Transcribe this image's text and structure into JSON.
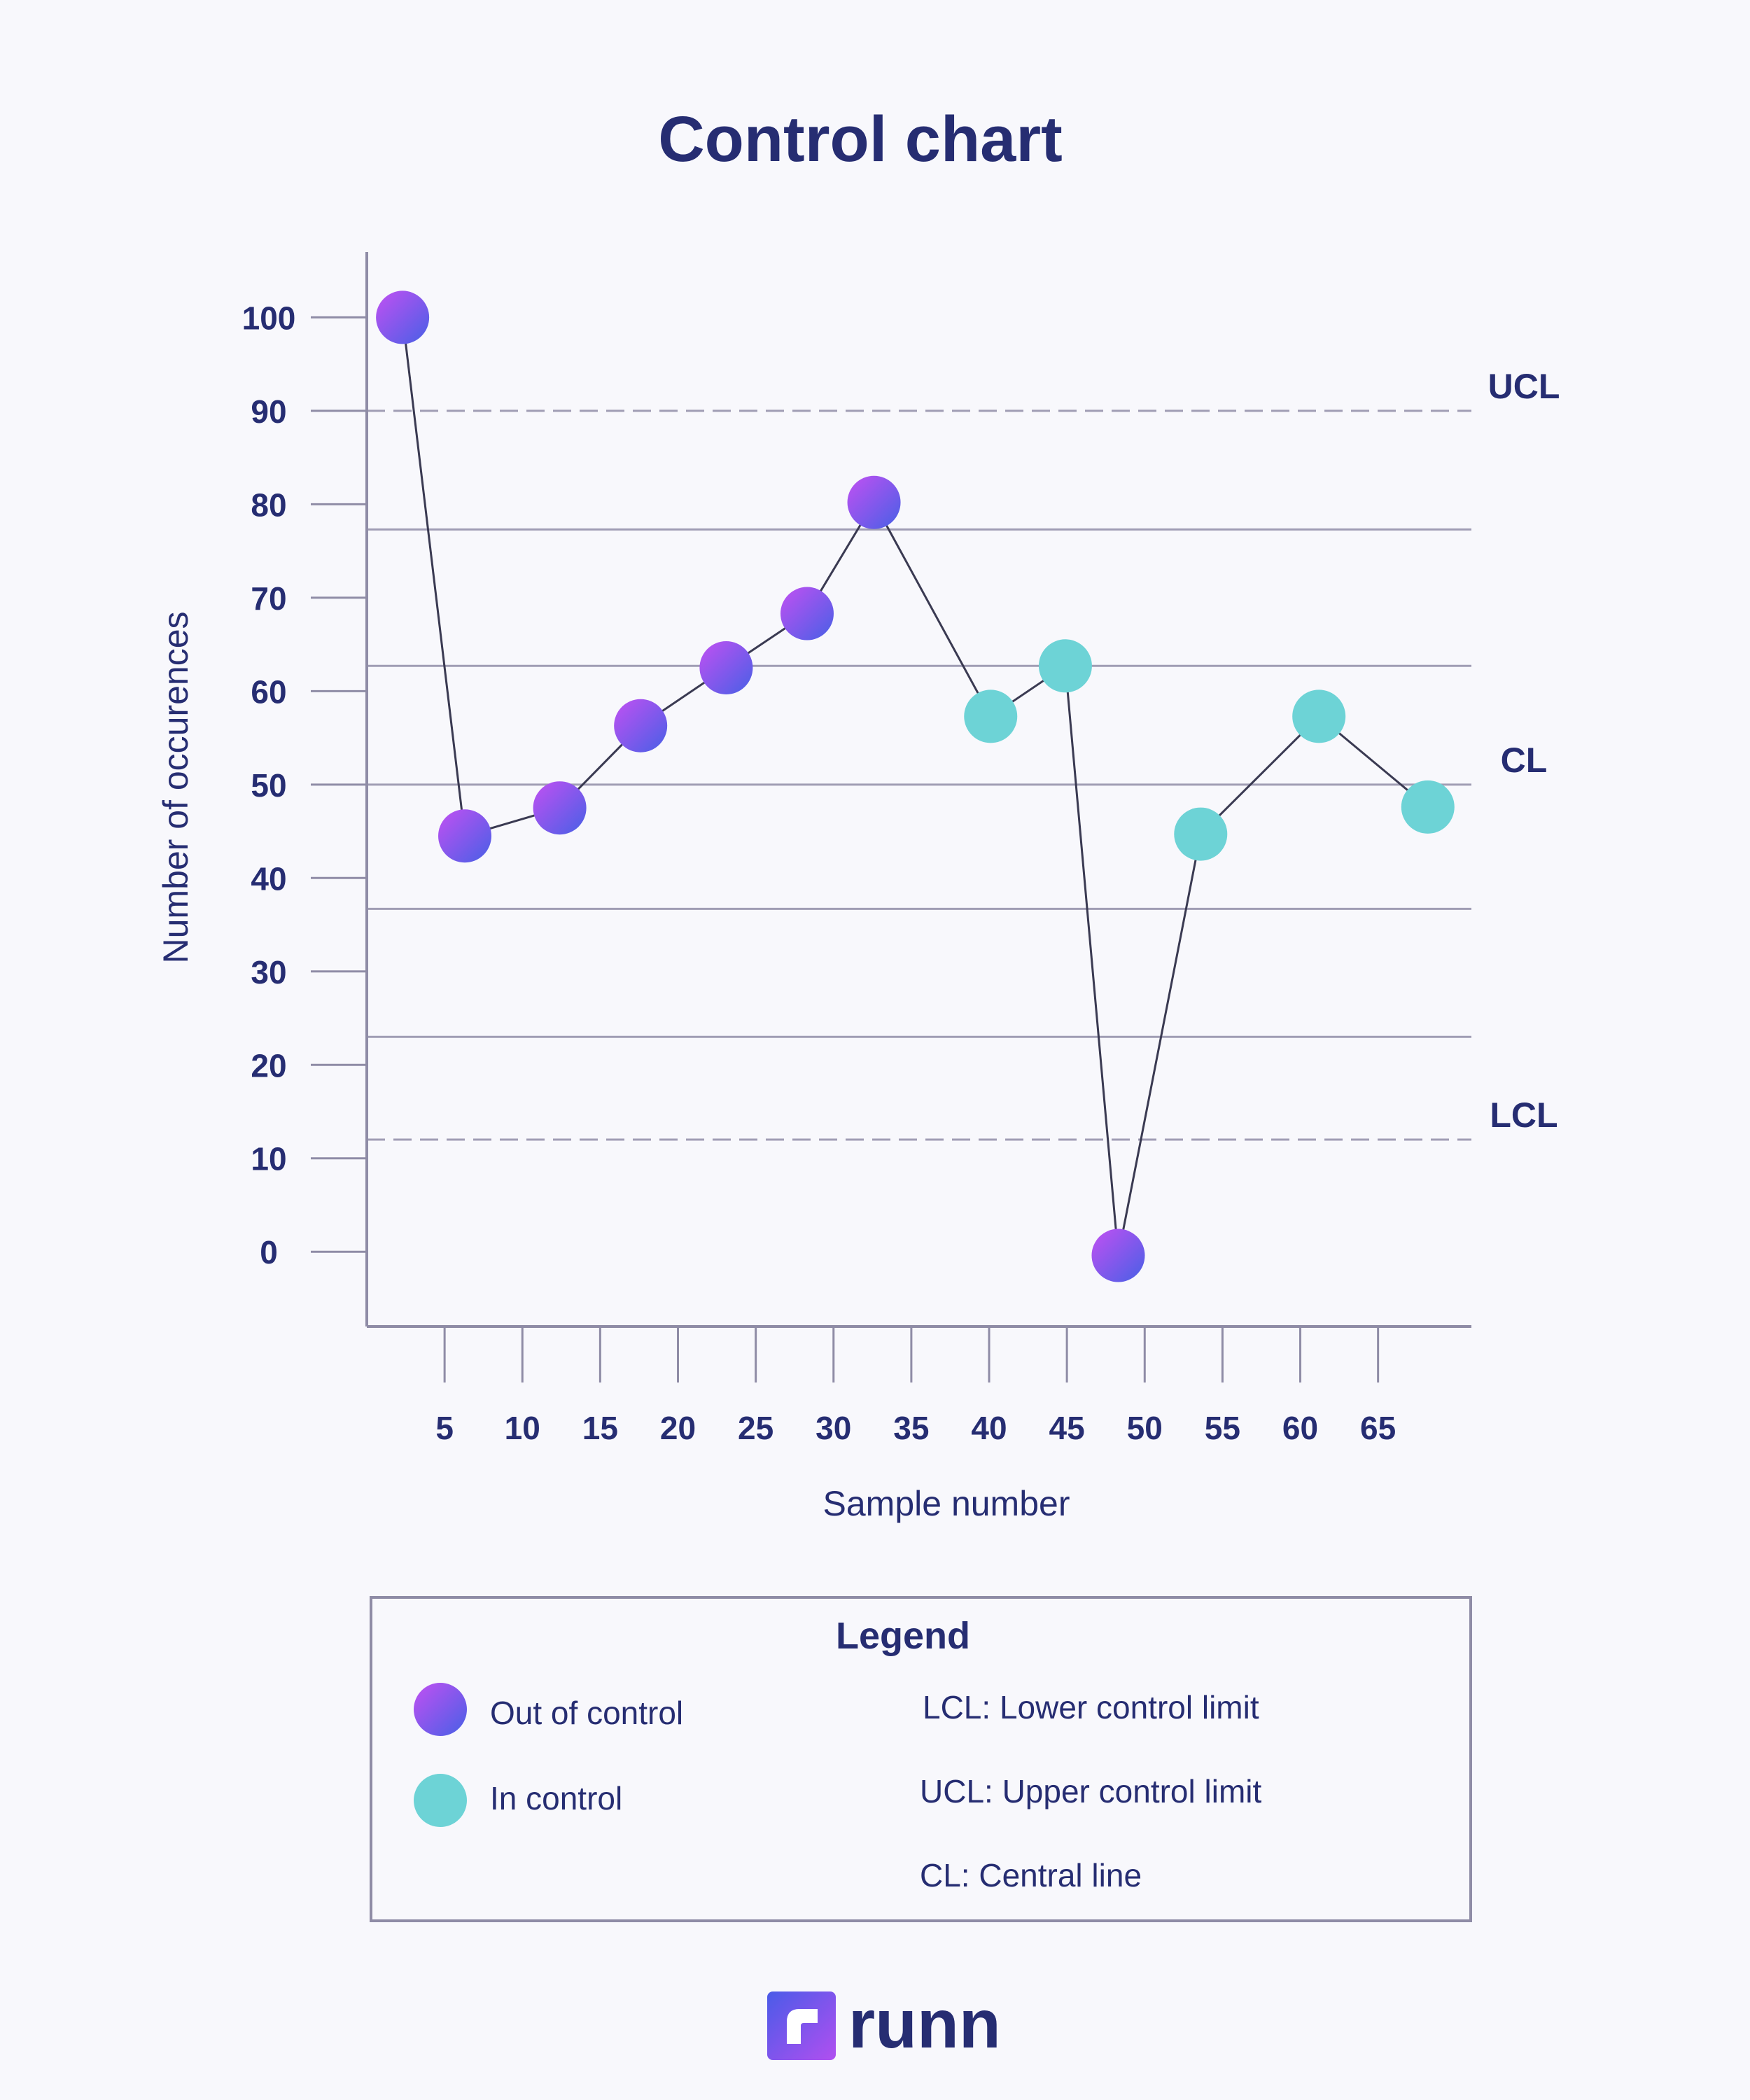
{
  "chart_data": {
    "type": "line",
    "title": "Control chart",
    "xlabel": "Sample number",
    "ylabel": "Number of occurences",
    "xlim": [
      0,
      71
    ],
    "ylim": [
      -8,
      107
    ],
    "xticks": [
      5,
      10,
      15,
      20,
      25,
      30,
      35,
      40,
      45,
      50,
      55,
      60,
      65
    ],
    "yticks": [
      0,
      10,
      20,
      30,
      40,
      50,
      60,
      70,
      80,
      90,
      100
    ],
    "points": [
      {
        "x": 2.3,
        "y": 100,
        "status": "out"
      },
      {
        "x": 6.3,
        "y": 44.5,
        "status": "out"
      },
      {
        "x": 12.4,
        "y": 47.5,
        "status": "out"
      },
      {
        "x": 17.6,
        "y": 56.3,
        "status": "out"
      },
      {
        "x": 23.1,
        "y": 62.5,
        "status": "out"
      },
      {
        "x": 28.3,
        "y": 68.3,
        "status": "out"
      },
      {
        "x": 32.6,
        "y": 80.2,
        "status": "out"
      },
      {
        "x": 40.1,
        "y": 57.3,
        "status": "in"
      },
      {
        "x": 44.9,
        "y": 62.7,
        "status": "in"
      },
      {
        "x": 48.3,
        "y": -0.4,
        "status": "out"
      },
      {
        "x": 53.6,
        "y": 44.7,
        "status": "in"
      },
      {
        "x": 61.2,
        "y": 57.3,
        "status": "in"
      },
      {
        "x": 68.2,
        "y": 47.6,
        "status": "in"
      }
    ],
    "reference_lines": [
      {
        "name": "UCL",
        "y": 90,
        "style": "dashed",
        "label": "UCL"
      },
      {
        "name": "upper-zone-b",
        "y": 77.3,
        "style": "solid",
        "label": ""
      },
      {
        "name": "upper-zone-c",
        "y": 62.7,
        "style": "solid",
        "label": ""
      },
      {
        "name": "CL",
        "y": 50,
        "style": "solid",
        "label": "CL"
      },
      {
        "name": "lower-zone-c",
        "y": 36.7,
        "style": "solid",
        "label": ""
      },
      {
        "name": "lower-zone-b",
        "y": 23,
        "style": "solid",
        "label": ""
      },
      {
        "name": "LCL",
        "y": 12,
        "style": "dashed",
        "label": "LCL"
      }
    ],
    "legend": {
      "title": "Legend",
      "markers": [
        {
          "label": "Out of control",
          "status": "out"
        },
        {
          "label": "In control",
          "status": "in"
        }
      ],
      "definitions": [
        "LCL: Lower control limit",
        "UCL: Upper control limit",
        "CL: Central line"
      ]
    }
  },
  "colors": {
    "text": "#262d72",
    "axis": "#8f8ca6",
    "line": "#a09db4",
    "connector": "#3a3a52",
    "in_control": "#6dd3d6",
    "out_start": "#b94ff0",
    "out_end": "#4a5be8",
    "background": "#f8f8fc"
  },
  "brand": {
    "name": "runn",
    "icon": "runn-logo-icon"
  }
}
